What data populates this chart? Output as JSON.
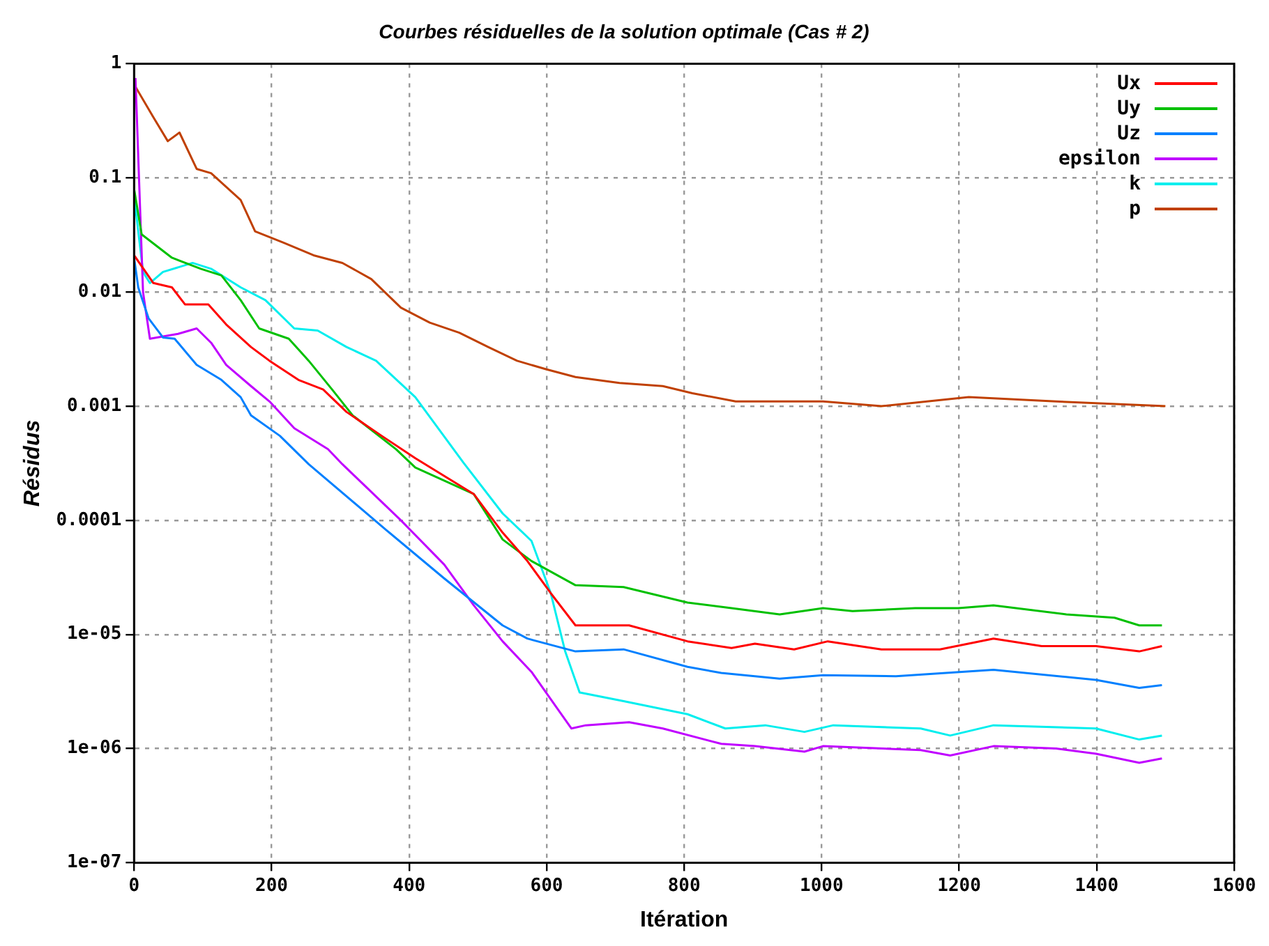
{
  "chart_data": {
    "type": "line",
    "title": "Courbes résiduelles de la solution optimale (Cas # 2)",
    "xlabel": "Itération",
    "ylabel": "Résidus",
    "log": "y",
    "grid": true,
    "legend": "top right",
    "marker": "none",
    "line_style": "solid",
    "xlim": [
      0,
      1600
    ],
    "xticks": [
      0,
      200,
      400,
      600,
      800,
      1000,
      1200,
      1400,
      1600
    ],
    "ylim": [
      1e-07,
      1
    ],
    "yticks": [
      1,
      0.1,
      0.01,
      0.001,
      0.0001,
      {
        "value": 1e-05,
        "label": "1e-05"
      },
      {
        "value": 1e-06,
        "label": "1e-06"
      },
      {
        "value": 1e-07,
        "label": "1e-07"
      }
    ],
    "series": [
      {
        "name": "Ux",
        "color": "#ff0000",
        "x": [
          0,
          28,
          55,
          74,
          108,
          134,
          170,
          197,
          239,
          275,
          309,
          360,
          409,
          494,
          536,
          572,
          606,
          642,
          720,
          805,
          869,
          903,
          960,
          1009,
          1087,
          1172,
          1250,
          1320,
          1399,
          1462,
          1495
        ],
        "values": [
          0.021,
          0.012,
          0.011,
          0.0078,
          0.0078,
          0.0052,
          0.0033,
          0.0025,
          0.0017,
          0.0014,
          0.00089,
          0.00055,
          0.00035,
          0.00017,
          7.8e-05,
          4.4e-05,
          2.3e-05,
          1.2e-05,
          1.2e-05,
          8.7e-06,
          7.6e-06,
          8.3e-06,
          7.4e-06,
          8.7e-06,
          7.4e-06,
          7.4e-06,
          9.2e-06,
          7.9e-06,
          7.9e-06,
          7.1e-06,
          7.9e-06
        ]
      },
      {
        "name": "Uy",
        "color": "#00c000",
        "x": [
          0,
          11,
          55,
          97,
          127,
          155,
          182,
          225,
          254,
          288,
          318,
          381,
          409,
          494,
          536,
          578,
          642,
          712,
          805,
          869,
          939,
          1002,
          1045,
          1136,
          1199,
          1250,
          1356,
          1426,
          1462,
          1495
        ],
        "values": [
          0.08,
          0.032,
          0.02,
          0.016,
          0.014,
          0.0085,
          0.0048,
          0.0039,
          0.0025,
          0.0014,
          0.00083,
          0.00042,
          0.00029,
          0.00017,
          6.8e-05,
          4.4e-05,
          2.7e-05,
          2.6e-05,
          1.9e-05,
          1.7e-05,
          1.5e-05,
          1.7e-05,
          1.6e-05,
          1.7e-05,
          1.7e-05,
          1.8e-05,
          1.5e-05,
          1.4e-05,
          1.2e-05,
          1.2e-05
        ]
      },
      {
        "name": "Uz",
        "color": "#0080ff",
        "x": [
          0,
          6,
          21,
          42,
          59,
          91,
          127,
          155,
          170,
          212,
          254,
          367,
          451,
          536,
          572,
          642,
          712,
          805,
          854,
          939,
          1002,
          1108,
          1250,
          1399,
          1462,
          1495
        ],
        "values": [
          0.02,
          0.011,
          0.0059,
          0.004,
          0.0039,
          0.0023,
          0.0017,
          0.0012,
          0.00083,
          0.00055,
          0.00031,
          8.2e-05,
          3.1e-05,
          1.2e-05,
          9.2e-06,
          7.1e-06,
          7.4e-06,
          5.2e-06,
          4.6e-06,
          4.1e-06,
          4.4e-06,
          4.3e-06,
          4.9e-06,
          4e-06,
          3.4e-06,
          3.6e-06
        ]
      },
      {
        "name": "epsilon",
        "color": "#c000ff",
        "x": [
          2,
          13,
          23,
          64,
          91,
          112,
          134,
          170,
          197,
          233,
          282,
          303,
          388,
          451,
          494,
          536,
          578,
          636,
          657,
          720,
          769,
          854,
          903,
          975,
          1002,
          1144,
          1187,
          1250,
          1341,
          1399,
          1462,
          1495
        ],
        "values": [
          0.75,
          0.01,
          0.0039,
          0.0043,
          0.0048,
          0.0036,
          0.0023,
          0.0015,
          0.0011,
          0.00064,
          0.00042,
          0.00031,
          0.0001,
          4.1e-05,
          1.8e-05,
          8.7e-06,
          4.7e-06,
          1.5e-06,
          1.6e-06,
          1.7e-06,
          1.5e-06,
          1.1e-06,
          1.05e-06,
          9.4e-07,
          1.05e-06,
          9.7e-07,
          8.7e-07,
          1.05e-06,
          1e-06,
          9e-07,
          7.5e-07,
          8.2e-07
        ]
      },
      {
        "name": "k",
        "color": "#00eeee",
        "x": [
          0,
          2,
          13,
          23,
          42,
          85,
          112,
          155,
          191,
          233,
          267,
          309,
          352,
          409,
          479,
          536,
          578,
          606,
          627,
          648,
          712,
          805,
          860,
          918,
          975,
          1017,
          1144,
          1187,
          1250,
          1399,
          1462,
          1495
        ],
        "values": [
          0.08,
          0.055,
          0.015,
          0.012,
          0.015,
          0.018,
          0.016,
          0.011,
          0.0085,
          0.0048,
          0.0046,
          0.0033,
          0.0025,
          0.0012,
          0.00032,
          0.000115,
          6.6e-05,
          2.3e-05,
          7.1e-06,
          3.1e-06,
          2.6e-06,
          2e-06,
          1.5e-06,
          1.6e-06,
          1.4e-06,
          1.6e-06,
          1.5e-06,
          1.3e-06,
          1.6e-06,
          1.5e-06,
          1.2e-06,
          1.3e-06
        ]
      },
      {
        "name": "p",
        "color": "#c04000",
        "x": [
          0,
          28,
          49,
          66,
          91,
          112,
          155,
          176,
          218,
          261,
          303,
          345,
          388,
          430,
          473,
          515,
          557,
          600,
          642,
          706,
          769,
          812,
          875,
          939,
          1002,
          1087,
          1214,
          1341,
          1500
        ],
        "values": [
          0.66,
          0.34,
          0.21,
          0.25,
          0.12,
          0.11,
          0.064,
          0.034,
          0.027,
          0.021,
          0.018,
          0.013,
          0.0073,
          0.0054,
          0.0044,
          0.0033,
          0.0025,
          0.0021,
          0.0018,
          0.0016,
          0.0015,
          0.0013,
          0.0011,
          0.0011,
          0.0011,
          0.001,
          0.0012,
          0.0011,
          0.001
        ]
      }
    ]
  }
}
